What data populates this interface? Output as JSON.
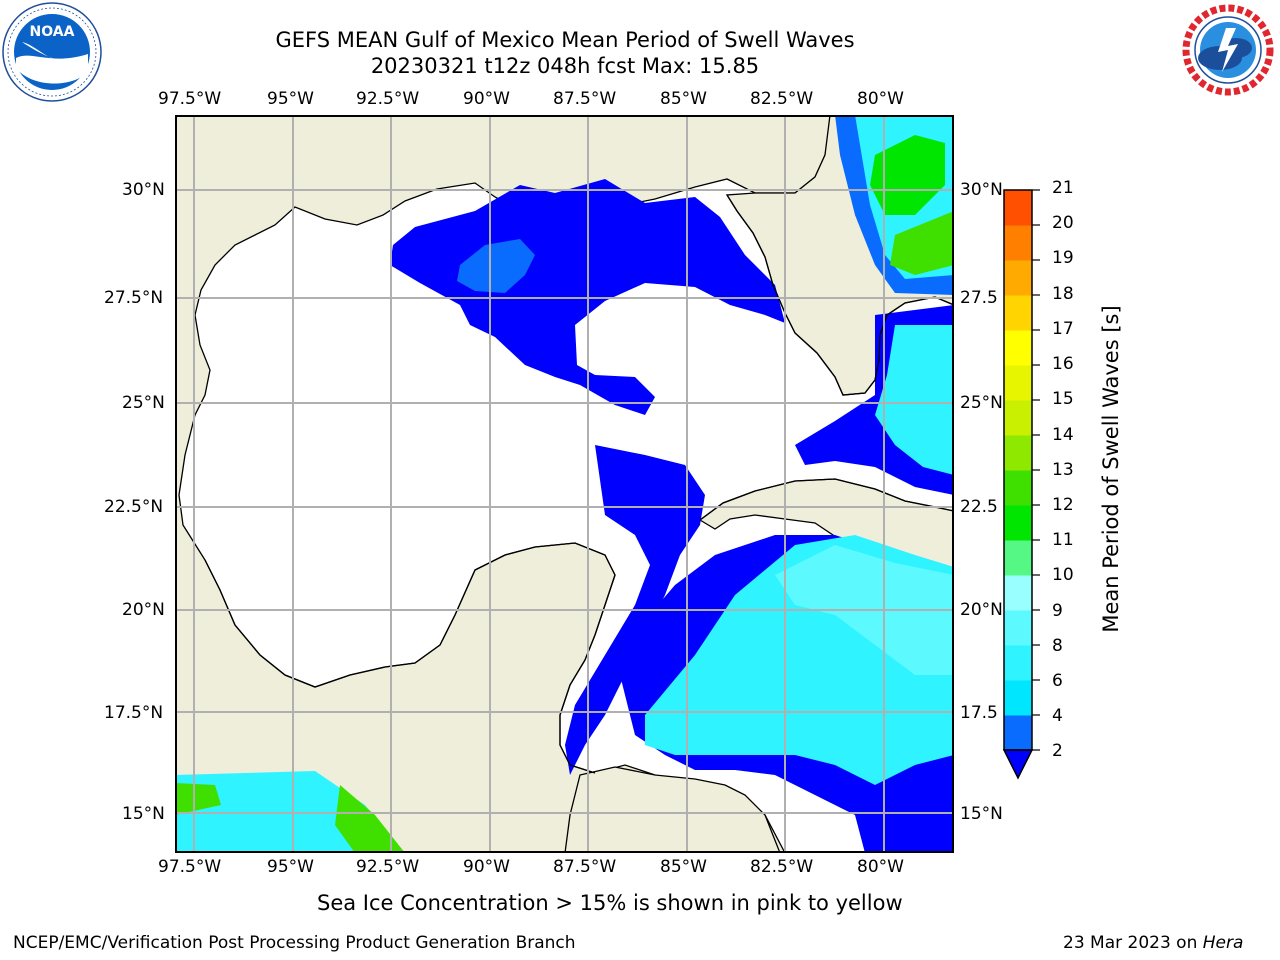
{
  "title": {
    "line1": "GEFS MEAN Gulf of Mexico Mean Period of Swell Waves",
    "line2": "20230321 t12z 048h fcst   Max: 15.85"
  },
  "logos": {
    "left": {
      "text": "NOAA",
      "ring_text": "NATIONAL OCEANIC AND ATMOSPHERIC ADMINISTRATION · U.S. DEPARTMENT OF COMMERCE"
    },
    "right": {
      "ring_text": "NATIONAL WEATHER SERVICE"
    }
  },
  "map": {
    "lon_labels": [
      "97.5°W",
      "95°W",
      "92.5°W",
      "90°W",
      "87.5°W",
      "85°W",
      "82.5°W",
      "80°W"
    ],
    "lat_labels_left": [
      "30°N",
      "27.5°N",
      "25°N",
      "22.5°N",
      "20°N",
      "17.5°N",
      "15°N"
    ],
    "lat_labels_right": [
      "30°N",
      "27.5",
      "25°N",
      "22.5",
      "20°N",
      "17.5",
      "15°N"
    ],
    "colors": {
      "land": "#efeedb",
      "ocean": "#ffffff",
      "grid": "#b0b0b0"
    }
  },
  "colorbar": {
    "label": "Mean Period of Swell Waves [s]",
    "ticks": [
      "2",
      "4",
      "6",
      "8",
      "9",
      "10",
      "11",
      "12",
      "13",
      "14",
      "15",
      "16",
      "17",
      "18",
      "19",
      "20",
      "21"
    ],
    "colors": [
      "#0a6cff",
      "#00e6ff",
      "#2ff3ff",
      "#5cfaff",
      "#99ffff",
      "#55f785",
      "#00e600",
      "#3fdf00",
      "#8fe800",
      "#c8f000",
      "#e8f500",
      "#ffff00",
      "#ffd400",
      "#ffaa00",
      "#ff8000",
      "#ff4f00",
      "#ff2000",
      "#ff0000"
    ],
    "extend_color": "#0000ff"
  },
  "caption": "Sea Ice Concentration > 15% is shown in pink to yellow",
  "footer": {
    "left": "NCEP/EMC/Verification Post Processing Product Generation Branch",
    "date": "23 Mar 2023 on ",
    "machine": "Hera"
  }
}
